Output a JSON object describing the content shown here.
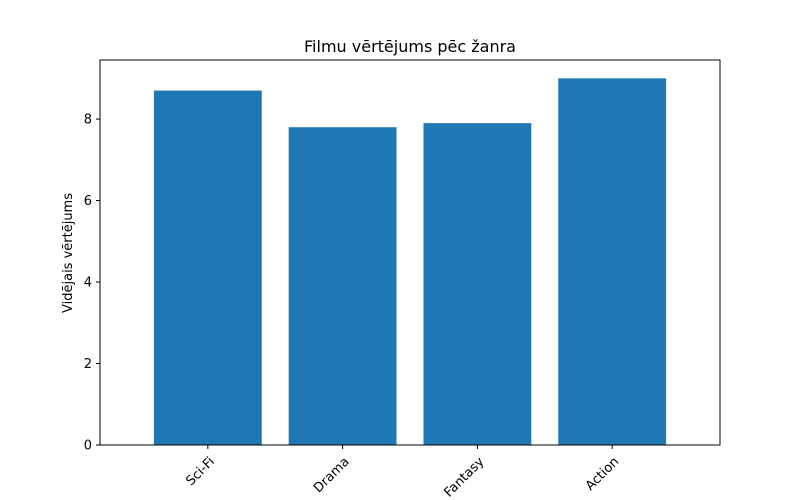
{
  "chart_data": {
    "type": "bar",
    "title": "Filmu vērtējums pēc žanra",
    "xlabel": "",
    "ylabel": "Vidējais vērtējums",
    "categories": [
      "Sci-Fi",
      "Drama",
      "Fantasy",
      "Action"
    ],
    "values": [
      8.7,
      7.8,
      7.9,
      9.0
    ],
    "ylim": [
      0,
      9.45
    ],
    "yticks": [
      0,
      2,
      4,
      6,
      8
    ],
    "bar_color": "#1f77b4",
    "grid": false,
    "x_tick_rotation": 45
  }
}
